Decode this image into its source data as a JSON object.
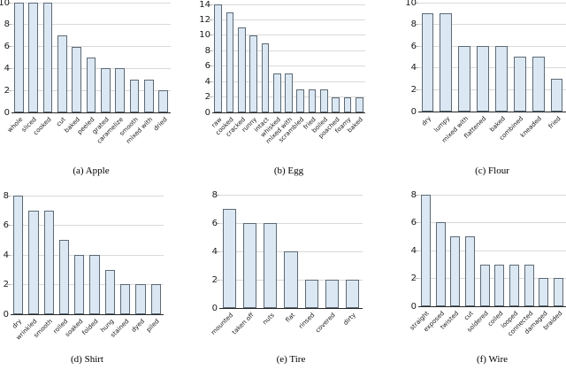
{
  "figure": {
    "background": "#ffffff"
  },
  "palette": {
    "bar_fill": "#dbe8f4",
    "bar_edge": "#5d6a75",
    "gridline": "#d9d9d9",
    "tick_mark": "#b4b4b4",
    "axis": "#262626",
    "text": "#1a1a1a"
  },
  "chart_data": [
    {
      "type": "bar",
      "caption": "(a) Apple",
      "title": "Apple",
      "categories": [
        "whole",
        "sliced",
        "cooked",
        "cut",
        "baked",
        "peeled",
        "grated",
        "caramelize",
        "smooth",
        "mixed with",
        "dried"
      ],
      "values": [
        10,
        10,
        10,
        7,
        6,
        5,
        4,
        4,
        3,
        3,
        2
      ],
      "ylim": [
        0,
        10
      ],
      "yticks": [
        0,
        2,
        4,
        6,
        8,
        10
      ],
      "grid": true,
      "legend": "none",
      "xlabel": "",
      "ylabel": ""
    },
    {
      "type": "bar",
      "caption": "(b) Egg",
      "title": "Egg",
      "categories": [
        "raw",
        "cooked",
        "cracked",
        "runny",
        "intact",
        "whisked",
        "mixed with",
        "scrambled",
        "fried",
        "boiled",
        "poached",
        "foamy",
        "baked"
      ],
      "values": [
        14,
        13,
        11,
        10,
        9,
        5,
        5,
        3,
        3,
        3,
        2,
        2,
        2
      ],
      "ylim": [
        0,
        14
      ],
      "yticks": [
        0,
        2,
        4,
        6,
        8,
        10,
        12,
        14
      ],
      "grid": true,
      "legend": "none",
      "xlabel": "",
      "ylabel": ""
    },
    {
      "type": "bar",
      "caption": "(c) Flour",
      "title": "Flour",
      "categories": [
        "dry",
        "lumpy",
        "mixed with",
        "flattened",
        "baked",
        "combined",
        "kneaded",
        "fried"
      ],
      "values": [
        9,
        9,
        6,
        6,
        6,
        5,
        5,
        3
      ],
      "ylim": [
        0,
        10
      ],
      "yticks": [
        0,
        2,
        4,
        6,
        8,
        10
      ],
      "grid": true,
      "legend": "none",
      "xlabel": "",
      "ylabel": ""
    },
    {
      "type": "bar",
      "caption": "(d) Shirt",
      "title": "Shirt",
      "categories": [
        "dry",
        "wrinkled",
        "smooth",
        "rolled",
        "soaked",
        "folded",
        "hung",
        "stained",
        "dyed",
        "piled"
      ],
      "values": [
        8,
        7,
        7,
        5,
        4,
        4,
        3,
        2,
        2,
        2
      ],
      "ylim": [
        0,
        8
      ],
      "yticks": [
        0,
        2,
        4,
        6,
        8
      ],
      "grid": true,
      "legend": "none",
      "xlabel": "",
      "ylabel": ""
    },
    {
      "type": "bar",
      "caption": "(e) Tire",
      "title": "Tire",
      "categories": [
        "mounted",
        "taken off",
        "nuts",
        "flat",
        "rinsed",
        "covered",
        "dirty"
      ],
      "values": [
        7,
        6,
        6,
        4,
        2,
        2,
        2
      ],
      "ylim": [
        0,
        8
      ],
      "yticks": [
        0,
        2,
        4,
        6,
        8
      ],
      "grid": true,
      "legend": "none",
      "xlabel": "",
      "ylabel": ""
    },
    {
      "type": "bar",
      "caption": "(f) Wire",
      "title": "Wire",
      "categories": [
        "straight",
        "exposed",
        "twisted",
        "cut",
        "soldered",
        "coiled",
        "looped",
        "connected",
        "damaged",
        "braided"
      ],
      "values": [
        8,
        6,
        5,
        5,
        3,
        3,
        3,
        3,
        2,
        2
      ],
      "ylim": [
        0,
        8
      ],
      "yticks": [
        0,
        2,
        4,
        6,
        8
      ],
      "grid": true,
      "legend": "none",
      "xlabel": "",
      "ylabel": ""
    }
  ]
}
